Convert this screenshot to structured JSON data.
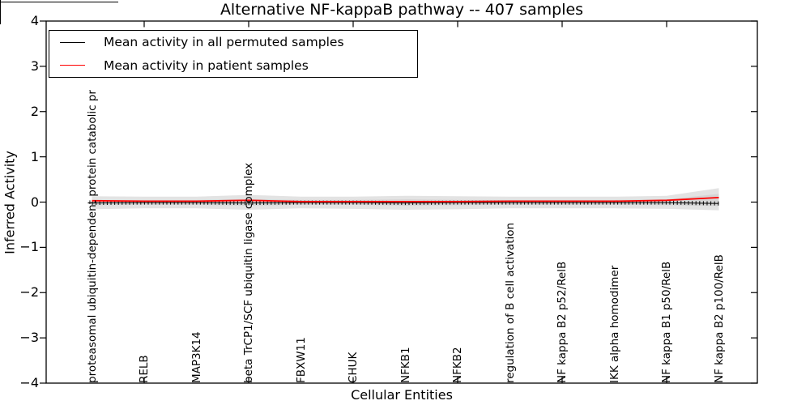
{
  "chart_data": {
    "type": "line",
    "title": "Alternative NF-kappaB pathway -- 407 samples",
    "xlabel": "Cellular Entities",
    "ylabel": "Inferred Activity",
    "ylim": [
      -4,
      4
    ],
    "yticks": [
      4,
      3,
      2,
      1,
      0,
      -1,
      -2,
      -3,
      -4
    ],
    "ytick_labels": [
      "4",
      "3",
      "2",
      "1",
      "0",
      "−1",
      "−2",
      "−3",
      "−4"
    ],
    "xtick_indices": [
      1,
      3,
      5,
      7,
      9,
      11
    ],
    "grid": false,
    "categories": [
      "proteasomal ubiquitin-dependent protein catabolic pr",
      "RELB",
      "MAP3K14",
      "beta TrCP1/SCF ubiquitin ligase complex",
      "FBXW11",
      "CHUK",
      "NFKB1",
      "NFKB2",
      "regulation of B cell activation",
      "NF kappa B2 p52/RelB",
      "IKK alpha homodimer",
      "NF kappa B1 p50/RelB",
      "NF kappa B2 p100/RelB"
    ],
    "series": [
      {
        "name": "Mean activity in all permuted samples",
        "color": "#000000",
        "style": "line-with-tick-markers",
        "values": [
          -0.02,
          -0.01,
          -0.01,
          -0.02,
          -0.01,
          -0.01,
          -0.02,
          -0.01,
          -0.01,
          -0.01,
          -0.01,
          -0.01,
          -0.03
        ]
      },
      {
        "name": "Mean activity in patient samples",
        "color": "#ff0000",
        "style": "solid",
        "values": [
          0.03,
          0.02,
          0.02,
          0.04,
          0.01,
          0.01,
          0.01,
          0.01,
          0.02,
          0.02,
          0.02,
          0.04,
          0.1
        ]
      }
    ],
    "band": {
      "name": "permuted-activity-spread",
      "outer_color": "#e3e3e3",
      "inner_color": "#d5d5d5",
      "outer_upper": [
        0.13,
        0.12,
        0.12,
        0.16,
        0.12,
        0.12,
        0.14,
        0.13,
        0.12,
        0.12,
        0.12,
        0.14,
        0.31
      ],
      "outer_lower": [
        -0.16,
        -0.14,
        -0.14,
        -0.17,
        -0.14,
        -0.15,
        -0.17,
        -0.16,
        -0.14,
        -0.14,
        -0.14,
        -0.15,
        -0.18
      ],
      "inner_upper": [
        0.05,
        0.05,
        0.05,
        0.07,
        0.05,
        0.05,
        0.06,
        0.05,
        0.05,
        0.05,
        0.05,
        0.06,
        0.18
      ],
      "inner_lower": [
        -0.07,
        -0.06,
        -0.06,
        -0.08,
        -0.06,
        -0.06,
        -0.08,
        -0.07,
        -0.06,
        -0.06,
        -0.06,
        -0.07,
        -0.09
      ]
    },
    "legend": {
      "position": "upper left"
    }
  }
}
